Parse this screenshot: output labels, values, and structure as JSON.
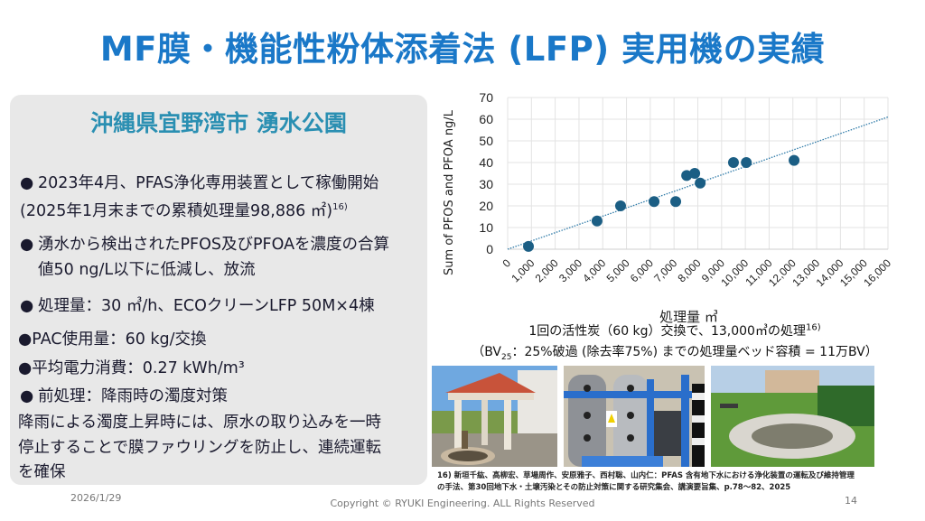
{
  "title": "MF膜・機能性粉体添着法 (LFP) 実用機の実績",
  "panel": {
    "heading": "沖縄県宜野湾市 湧水公園",
    "bullets": [
      {
        "line1": "2023年4月、PFAS浄化専用装置として稼働開始",
        "line2": "(2025年1月末までの累積処理量98,886 ㎡)",
        "ref": "16)"
      },
      {
        "line1": "湧水から検出されたPFOS及びPFOAを濃度の合算",
        "line2": "値50 ng/L以下に低減し、放流"
      },
      {
        "line1": "処理量：30 ㎥/h、ECOクリーンLFP 50M×4棟"
      },
      {
        "line1": "●PAC使用量：60 kg/交換"
      },
      {
        "line1": "●平均電力消費：0.27 kWh/m³"
      },
      {
        "line1": "前処理：降雨時の濁度対策"
      }
    ],
    "paragraph": [
      "降雨による濁度上昇時には、原水の取り込みを一時",
      "停止することで膜ファウリングを防止し、連続運転",
      "を確保"
    ]
  },
  "chart_data": {
    "type": "scatter",
    "title": "",
    "xlabel": "処理量 ㎥",
    "ylabel": "Sum of PFOS and PFOA ng/L",
    "xlim": [
      0,
      16000
    ],
    "ylim": [
      0,
      70
    ],
    "x_ticks": [
      "0",
      "1,000",
      "2,000",
      "3,000",
      "4,000",
      "5,000",
      "6,000",
      "7,000",
      "8,000",
      "9,000",
      "10,000",
      "11,000",
      "12,000",
      "13,000",
      "14,000",
      "15,000",
      "16,000"
    ],
    "y_ticks": [
      "0",
      "10",
      "20",
      "30",
      "40",
      "50",
      "60",
      "70"
    ],
    "grid": true,
    "legend": "none",
    "series": [
      {
        "name": "measured",
        "color": "#1b5e84",
        "x": [
          875,
          3760,
          4750,
          6160,
          7070,
          7530,
          7870,
          8100,
          9500,
          10040,
          12050
        ],
        "y": [
          1.3,
          13,
          20,
          22,
          22,
          34,
          35,
          30.5,
          40,
          40,
          41
        ]
      }
    ],
    "trendline": {
      "type": "linear-dotted",
      "x": [
        0,
        16000
      ],
      "y": [
        0,
        61
      ],
      "color": "#2e7aa8"
    }
  },
  "captions": {
    "line1": "1回の活性炭（60 kg）交換で、13,000㎥の処理",
    "line1_ref": "16)",
    "line2_pre": "（BV",
    "line2_sub": "25",
    "line2_post": "：25%破過 (除去率75%) までの処理量ベッド容積 = 11万BV）"
  },
  "photos": [
    {
      "name": "spring-pavilion-photo"
    },
    {
      "name": "lfp-equipment-photo"
    },
    {
      "name": "spring-pond-photo"
    }
  ],
  "reference": {
    "line1": "16) 新垣千紘、髙柳宏、草場周作、安原雅子、西村聡、山内仁：PFAS 含有地下水における浄化装置の運転及び維持管理",
    "line2": "の手法、第30回地下水・土壌汚染とその防止対策に関する研究集会、講演要旨集、p.78～82、2025"
  },
  "footer": {
    "date": "2026/1/29",
    "copyright": "Copyright © RYUKI Engineering. ALL Rights Reserved",
    "page": "14"
  }
}
